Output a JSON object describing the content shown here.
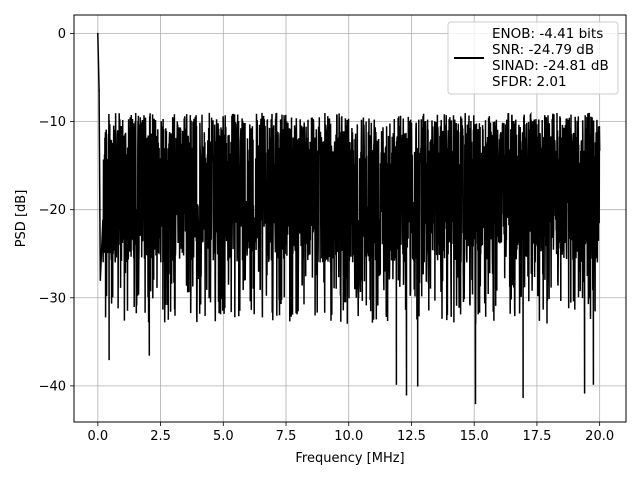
{
  "chart_data": {
    "type": "line",
    "title": "",
    "xlabel": "Frequency [MHz]",
    "ylabel": "PSD [dB]",
    "xlim": [
      -0.95,
      21.05
    ],
    "ylim": [
      -44.1,
      2.1
    ],
    "xticks": [
      0.0,
      2.5,
      5.0,
      7.5,
      10.0,
      12.5,
      15.0,
      17.5,
      20.0
    ],
    "xtick_labels": [
      "0.0",
      "2.5",
      "5.0",
      "7.5",
      "10.0",
      "12.5",
      "15.0",
      "17.5",
      "20.0"
    ],
    "yticks": [
      0,
      -10,
      -20,
      -30,
      -40
    ],
    "ytick_labels": [
      "0",
      "−10",
      "−20",
      "−30",
      "−40"
    ],
    "grid": true,
    "legend_position": "top-right",
    "legend": {
      "lines": [
        "ENOB: -4.41 bits",
        "SNR: -24.79 dB",
        "SINAD: -24.81 dB",
        "SFDR: 2.01"
      ]
    },
    "series": [
      {
        "color": "#000000",
        "description": "dense noise spectrum; values mostly fluctuate between about -26 dB and -8 dB",
        "notable_points": [
          {
            "x": 0.0,
            "y": 0.0
          },
          {
            "x": 0.05,
            "y": -6.5
          },
          {
            "x": 0.1,
            "y": -28.0
          },
          {
            "x": 0.45,
            "y": -37.0
          },
          {
            "x": 2.05,
            "y": -36.5
          },
          {
            "x": 11.9,
            "y": -39.8
          },
          {
            "x": 12.3,
            "y": -41.0
          },
          {
            "x": 12.75,
            "y": -40.0
          },
          {
            "x": 15.05,
            "y": -42.0
          },
          {
            "x": 16.95,
            "y": -41.3
          },
          {
            "x": 19.4,
            "y": -40.8
          },
          {
            "x": 19.75,
            "y": -39.8
          }
        ]
      }
    ]
  }
}
